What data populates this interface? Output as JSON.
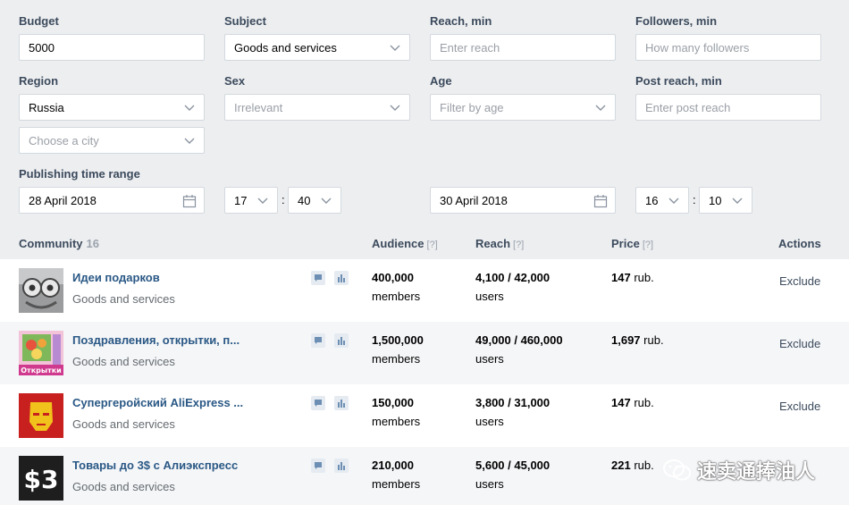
{
  "filters": {
    "budget": {
      "label": "Budget",
      "value": "5000"
    },
    "subject": {
      "label": "Subject",
      "value": "Goods and services"
    },
    "reach_min": {
      "label": "Reach, min",
      "placeholder": "Enter reach"
    },
    "followers_min": {
      "label": "Followers, min",
      "placeholder": "How many followers"
    },
    "region": {
      "label": "Region",
      "value": "Russia",
      "city_placeholder": "Choose a city"
    },
    "sex": {
      "label": "Sex",
      "value": "Irrelevant"
    },
    "age": {
      "label": "Age",
      "placeholder": "Filter by age"
    },
    "post_reach_min": {
      "label": "Post reach, min",
      "placeholder": "Enter post reach"
    },
    "publishing": {
      "label": "Publishing time range",
      "start_date": "28 April 2018",
      "start_hour": "17",
      "start_min": "40",
      "end_date": "30 April 2018",
      "end_hour": "16",
      "end_min": "10",
      "separator": ":"
    }
  },
  "table": {
    "headers": {
      "community": "Community",
      "count": "16",
      "audience": "Audience",
      "reach": "Reach",
      "price": "Price",
      "actions": "Actions",
      "help": "[?]"
    },
    "rows": [
      {
        "name": "Идеи подарков",
        "subject": "Goods and services",
        "audience": "400,000",
        "audience_unit": "members",
        "reach": "4,100 / 42,000",
        "reach_unit": "users",
        "price": "147",
        "price_unit": "rub.",
        "action": "Exclude"
      },
      {
        "name": "Поздравления, открытки, п...",
        "subject": "Goods and services",
        "audience": "1,500,000",
        "audience_unit": "members",
        "reach": "49,000 / 460,000",
        "reach_unit": "users",
        "price": "1,697",
        "price_unit": "rub.",
        "action": "Exclude"
      },
      {
        "name": "Супергеройский AliExpress ...",
        "subject": "Goods and services",
        "audience": "150,000",
        "audience_unit": "members",
        "reach": "3,800 / 31,000",
        "reach_unit": "users",
        "price": "147",
        "price_unit": "rub.",
        "action": "Exclude"
      },
      {
        "name": "Товары до 3$ с Алиэкспресс",
        "subject": "Goods and services",
        "audience": "210,000",
        "audience_unit": "members",
        "reach": "5,600 / 45,000",
        "reach_unit": "users",
        "price": "221",
        "price_unit": "rub.",
        "action": ""
      }
    ]
  },
  "thumbs": {
    "row2_text": "Открытки",
    "row4_text": "$3"
  },
  "watermark": "速卖通捧油人",
  "colors": {
    "link": "#2a5885",
    "label": "#3b4a5c",
    "bg": "#edeef0"
  }
}
